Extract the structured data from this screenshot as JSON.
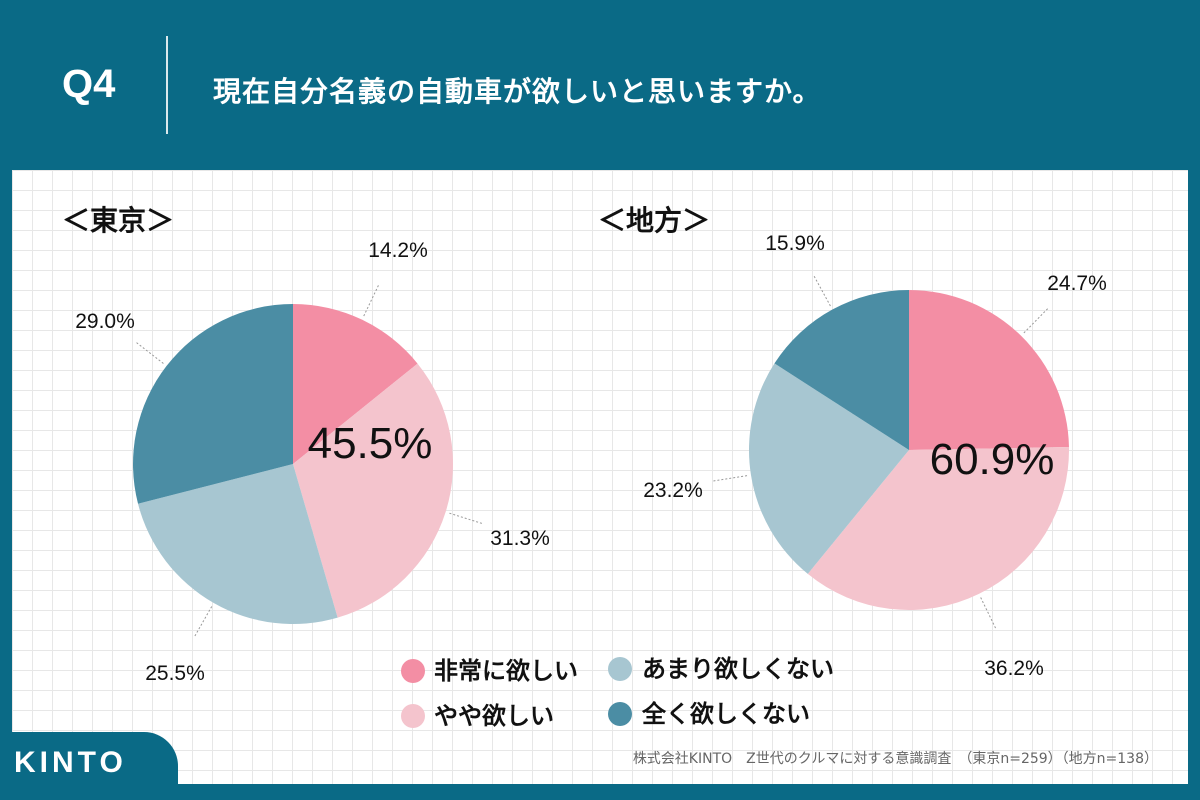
{
  "header": {
    "q_number": "Q4",
    "question": "現在自分名義の自動車が欲しいと思いますか。"
  },
  "colors": {
    "header_bg": "#0a6a86",
    "very_want": "#f38ea4",
    "somewhat_want": "#f4c4cd",
    "not_much": "#a7c6d1",
    "not_at_all": "#4b8da4"
  },
  "legend": {
    "very_want": "非常に欲しい",
    "somewhat_want": "やや欲しい",
    "not_much": "あまり欲しくない",
    "not_at_all": "全く欲しくない"
  },
  "chart_data": [
    {
      "type": "pie",
      "title": "＜東京＞",
      "center_label": "45.5%",
      "slices": [
        {
          "label": "非常に欲しい",
          "value": 14.2,
          "display": "14.2%",
          "color": "#f38ea4"
        },
        {
          "label": "やや欲しい",
          "value": 31.3,
          "display": "31.3%",
          "color": "#f4c4cd"
        },
        {
          "label": "あまり欲しくない",
          "value": 25.5,
          "display": "25.5%",
          "color": "#a7c6d1"
        },
        {
          "label": "全く欲しくない",
          "value": 29.0,
          "display": "29.0%",
          "color": "#4b8da4"
        }
      ]
    },
    {
      "type": "pie",
      "title": "＜地方＞",
      "center_label": "60.9%",
      "slices": [
        {
          "label": "非常に欲しい",
          "value": 24.7,
          "display": "24.7%",
          "color": "#f38ea4"
        },
        {
          "label": "やや欲しい",
          "value": 36.2,
          "display": "36.2%",
          "color": "#f4c4cd"
        },
        {
          "label": "あまり欲しくない",
          "value": 23.2,
          "display": "23.2%",
          "color": "#a7c6d1"
        },
        {
          "label": "全く欲しくない",
          "value": 15.9,
          "display": "15.9%",
          "color": "#4b8da4"
        }
      ]
    }
  ],
  "source": "株式会社KINTO　Z世代のクルマに対する意識調査　（東京n=259）（地方n=138）",
  "logo": "KINTO"
}
